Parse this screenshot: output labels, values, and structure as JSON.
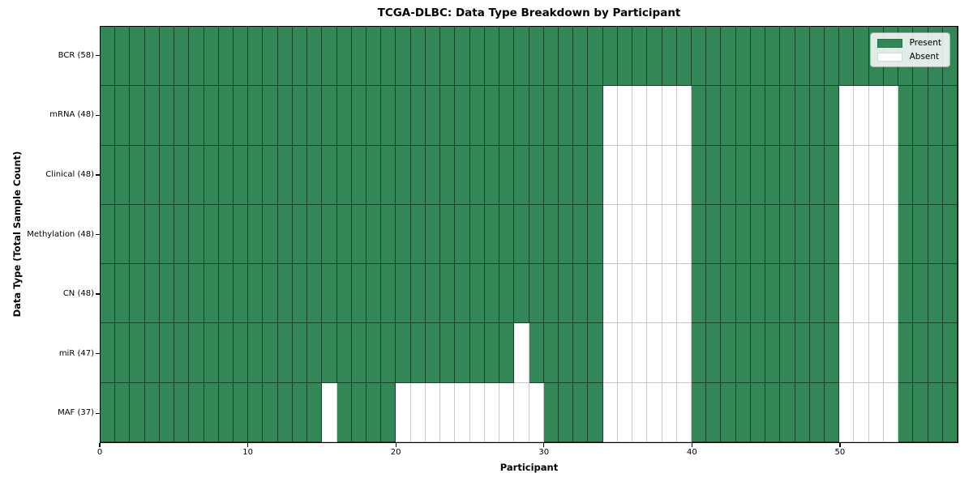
{
  "chart_data": {
    "type": "heatmap",
    "title": "TCGA-DLBC: Data Type Breakdown by Participant",
    "xlabel": "Participant",
    "ylabel": "Data Type (Total Sample Count)",
    "x_ticks": [
      0,
      10,
      20,
      30,
      40,
      50
    ],
    "x_range": [
      0,
      58
    ],
    "n_participants": 58,
    "grid": true,
    "legend_position": "upper right",
    "legend": [
      {
        "label": "Present",
        "color": "#338757"
      },
      {
        "label": "Absent",
        "color": "#ffffff"
      }
    ],
    "rows": [
      {
        "label": "BCR (58)",
        "data_type": "BCR",
        "present_count": 58,
        "absent_participants": []
      },
      {
        "label": "mRNA (48)",
        "data_type": "mRNA",
        "present_count": 48,
        "absent_participants": [
          34,
          35,
          36,
          37,
          38,
          39,
          50,
          51,
          52,
          53
        ]
      },
      {
        "label": "Clinical (48)",
        "data_type": "Clinical",
        "present_count": 48,
        "absent_participants": [
          34,
          35,
          36,
          37,
          38,
          39,
          50,
          51,
          52,
          53
        ]
      },
      {
        "label": "Methylation (48)",
        "data_type": "Methylation",
        "present_count": 48,
        "absent_participants": [
          34,
          35,
          36,
          37,
          38,
          39,
          50,
          51,
          52,
          53
        ]
      },
      {
        "label": "CN (48)",
        "data_type": "CN",
        "present_count": 48,
        "absent_participants": [
          34,
          35,
          36,
          37,
          38,
          39,
          50,
          51,
          52,
          53
        ]
      },
      {
        "label": "miR (47)",
        "data_type": "miR",
        "present_count": 47,
        "absent_participants": [
          28,
          34,
          35,
          36,
          37,
          38,
          39,
          50,
          51,
          52,
          53
        ]
      },
      {
        "label": "MAF (37)",
        "data_type": "MAF",
        "present_count": 37,
        "absent_participants": [
          15,
          20,
          21,
          22,
          23,
          24,
          25,
          26,
          27,
          28,
          29,
          34,
          35,
          36,
          37,
          38,
          39,
          50,
          51,
          52,
          53
        ]
      }
    ]
  }
}
